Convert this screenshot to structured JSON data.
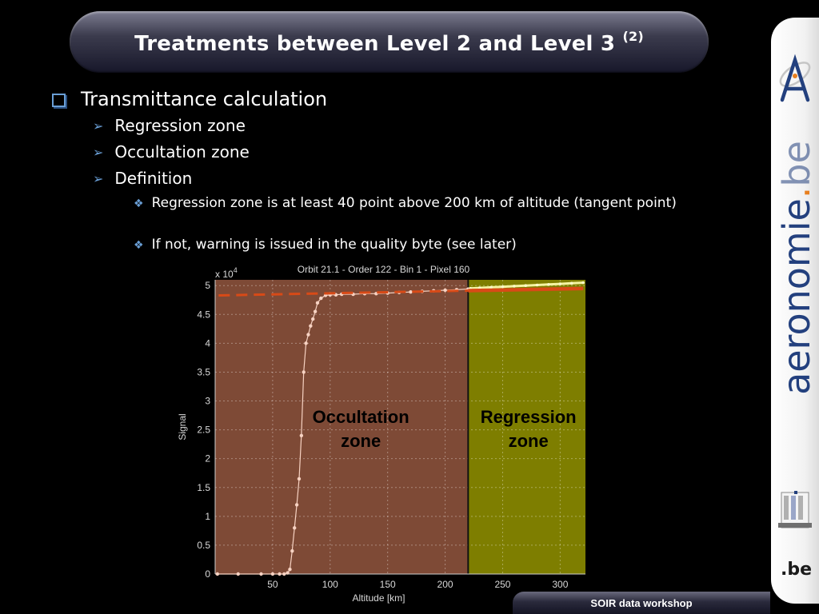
{
  "slide": {
    "title": "Treatments between Level 2 and Level 3",
    "title_superscript": "(2)",
    "brand_main": "aeronomie",
    "brand_dot": ".",
    "brand_tld": "be",
    "footer": "SOIR data workshop",
    "be_logo_text": ".be"
  },
  "bullets": {
    "level1": "Transmittance calculation",
    "level2": [
      "Regression zone",
      "Occultation zone",
      "Definition"
    ],
    "level3": [
      "Regression zone is at least 40 point above 200 km of altitude (tangent point)",
      "If not, warning is issued in the quality byte (see later)"
    ]
  },
  "colors": {
    "bullet_accent": "#6a9fd6",
    "occultation_zone": "#7e4a36",
    "regression_zone": "#7e7e00",
    "regression_fit": "#d84a17",
    "data_points": "#f7d2c2",
    "brand_blue": "#23407e",
    "brand_orange": "#e87f1e"
  },
  "chart_data": {
    "type": "scatter",
    "title": "Orbit 21.1 - Order 122 - Bin 1 - Pixel 160",
    "xlabel": "Altitude [km]",
    "ylabel": "Signal",
    "y_multiplier": "x 10",
    "y_multiplier_exponent": "4",
    "xlim": [
      0,
      322
    ],
    "ylim": [
      0,
      5.1
    ],
    "xticks": [
      50,
      100,
      150,
      200,
      250,
      300
    ],
    "yticks": [
      "0",
      "0.5",
      "1",
      "1.5",
      "2",
      "2.5",
      "3",
      "3.5",
      "4",
      "4.5",
      "5"
    ],
    "grid": true,
    "zones": [
      {
        "label": [
          "Occultation",
          "zone"
        ],
        "x_range": [
          0,
          220
        ]
      },
      {
        "label": [
          "Regression",
          "zone"
        ],
        "x_range": [
          220,
          322
        ]
      }
    ],
    "zone_boundary_x": 220,
    "series": [
      {
        "x": [
          2,
          20,
          40,
          50,
          56,
          60,
          63,
          65,
          67,
          69,
          71,
          73,
          75,
          77,
          79,
          81,
          83,
          85,
          87,
          89,
          92,
          96,
          100,
          105,
          110,
          120,
          130,
          140,
          150,
          160,
          170,
          180,
          190,
          200,
          210,
          220
        ],
        "y": [
          0,
          0,
          0,
          0,
          0,
          0,
          0.02,
          0.08,
          0.4,
          0.8,
          1.2,
          1.65,
          2.4,
          3.5,
          4.0,
          4.15,
          4.3,
          4.42,
          4.55,
          4.7,
          4.78,
          4.83,
          4.84,
          4.84,
          4.85,
          4.85,
          4.86,
          4.86,
          4.87,
          4.88,
          4.89,
          4.9,
          4.91,
          4.92,
          4.93,
          4.94
        ]
      },
      {
        "x": [
          222,
          230,
          240,
          250,
          260,
          270,
          280,
          290,
          300,
          310,
          320
        ],
        "y": [
          4.95,
          4.96,
          4.97,
          4.98,
          4.99,
          5.0,
          5.01,
          5.02,
          5.03,
          5.04,
          5.05
        ]
      },
      {
        "x": [
          3,
          320
        ],
        "y": [
          4.83,
          4.95
        ]
      }
    ]
  }
}
